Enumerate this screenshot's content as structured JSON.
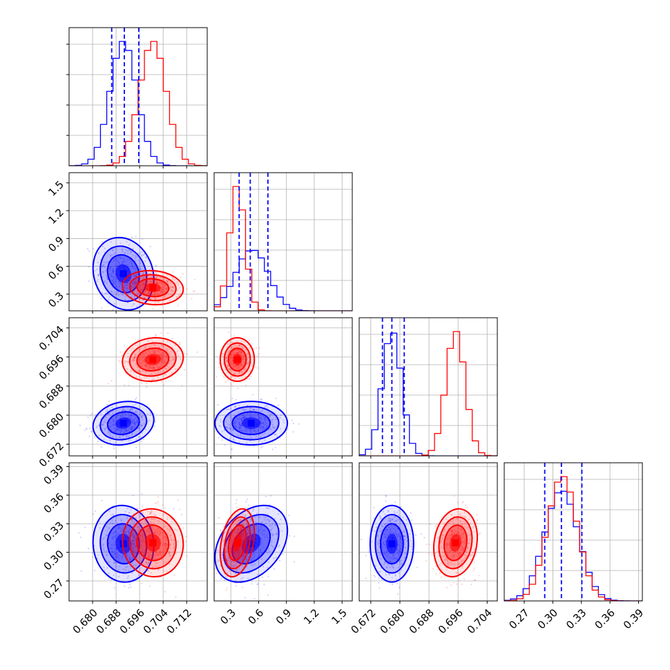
{
  "chart_data": {
    "type": "corner",
    "colors": {
      "series_a": "#0000ff",
      "series_b": "#ff0000",
      "grid": "#b0b0b0"
    },
    "series": [
      {
        "color": "#0000ff",
        "means": [
          0.6905,
          0.52,
          0.6778,
          0.309
        ],
        "stds": [
          0.0045,
          0.17,
          0.0026,
          0.0175
        ],
        "rho": {
          "1_0": -0.15,
          "2_0": 0.15,
          "3_0": -0.05,
          "2_1": 0.0,
          "3_1": 0.35,
          "3_2": 0.0
        }
      },
      {
        "color": "#ff0000",
        "means": [
          0.7005,
          0.37,
          0.6953,
          0.31
        ],
        "stds": [
          0.0045,
          0.08,
          0.0026,
          0.0155
        ],
        "rho": {
          "1_0": -0.1,
          "2_0": 0.1,
          "3_0": -0.05,
          "2_1": 0.0,
          "3_1": 0.3,
          "3_2": 0.15
        }
      }
    ],
    "quantiles_blue": [
      [
        0.6865,
        0.6908,
        0.6957
      ],
      [
        0.39,
        0.51,
        0.7
      ],
      [
        0.6752,
        0.6778,
        0.6812
      ],
      [
        0.2915,
        0.309,
        0.3305
      ]
    ],
    "axes": [
      {
        "range": [
          0.672,
          0.719
        ],
        "ticks": [
          "0.680",
          "0.688",
          "0.696",
          "0.704",
          "0.712"
        ],
        "tick_values": [
          0.68,
          0.688,
          0.696,
          0.704,
          0.712
        ]
      },
      {
        "range": [
          0.12,
          1.61
        ],
        "ticks": [
          "0.3",
          "0.6",
          "0.9",
          "1.2",
          "1.5"
        ],
        "tick_values": [
          0.3,
          0.6,
          0.9,
          1.2,
          1.5
        ]
      },
      {
        "range": [
          0.6688,
          0.7068
        ],
        "ticks": [
          "0.672",
          "0.680",
          "0.688",
          "0.696",
          "0.704"
        ],
        "tick_values": [
          0.672,
          0.68,
          0.688,
          0.696,
          0.704
        ]
      },
      {
        "range": [
          0.249,
          0.394
        ],
        "ticks": [
          "0.27",
          "0.30",
          "0.33",
          "0.36",
          "0.39"
        ],
        "tick_values": [
          0.27,
          0.3,
          0.33,
          0.36,
          0.39
        ]
      }
    ],
    "grid": true,
    "xlabel": "",
    "ylabel": "",
    "title": ""
  }
}
